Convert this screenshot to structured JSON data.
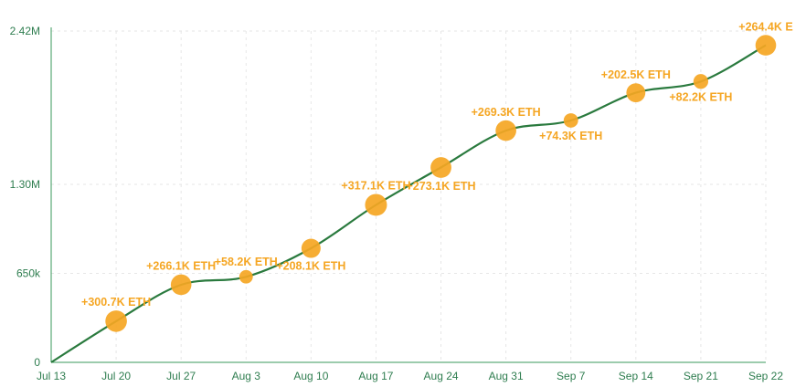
{
  "chart_data": {
    "type": "line",
    "x": [
      "Jul 13",
      "Jul 20",
      "Jul 27",
      "Aug 3",
      "Aug 10",
      "Aug 17",
      "Aug 24",
      "Aug 31",
      "Sep 7",
      "Sep 14",
      "Sep 21",
      "Sep 22"
    ],
    "values": [
      0,
      300700,
      566800,
      625000,
      833100,
      1150200,
      1423300,
      1692600,
      1766900,
      1969400,
      2051600,
      2316000
    ],
    "point_labels": [
      "",
      "+300.7K ETH",
      "+266.1K ETH",
      "+58.2K ETH",
      "+208.1K ETH",
      "+317.1K ETH",
      "+273.1K ETH",
      "+269.3K ETH",
      "+74.3K ETH",
      "+202.5K ETH",
      "+82.2K ETH",
      "+264.4K E"
    ],
    "label_positions": [
      "none",
      "above",
      "above",
      "above",
      "below",
      "above",
      "below",
      "above",
      "below",
      "above",
      "below",
      "above"
    ],
    "y_ticks": [
      {
        "value": 0,
        "label": "0"
      },
      {
        "value": 650000,
        "label": "650k"
      },
      {
        "value": 1300000,
        "label": "1.30M"
      },
      {
        "value": 2420000,
        "label": "2.42M"
      }
    ],
    "ylim": [
      0,
      2420000
    ],
    "title": "",
    "xlabel": "",
    "ylabel": "",
    "grid": true,
    "line_color": "#2a7a3e",
    "marker_color": "#f5a623",
    "axis_color": "#3a9a5b",
    "grid_color": "#e6e6e6"
  }
}
